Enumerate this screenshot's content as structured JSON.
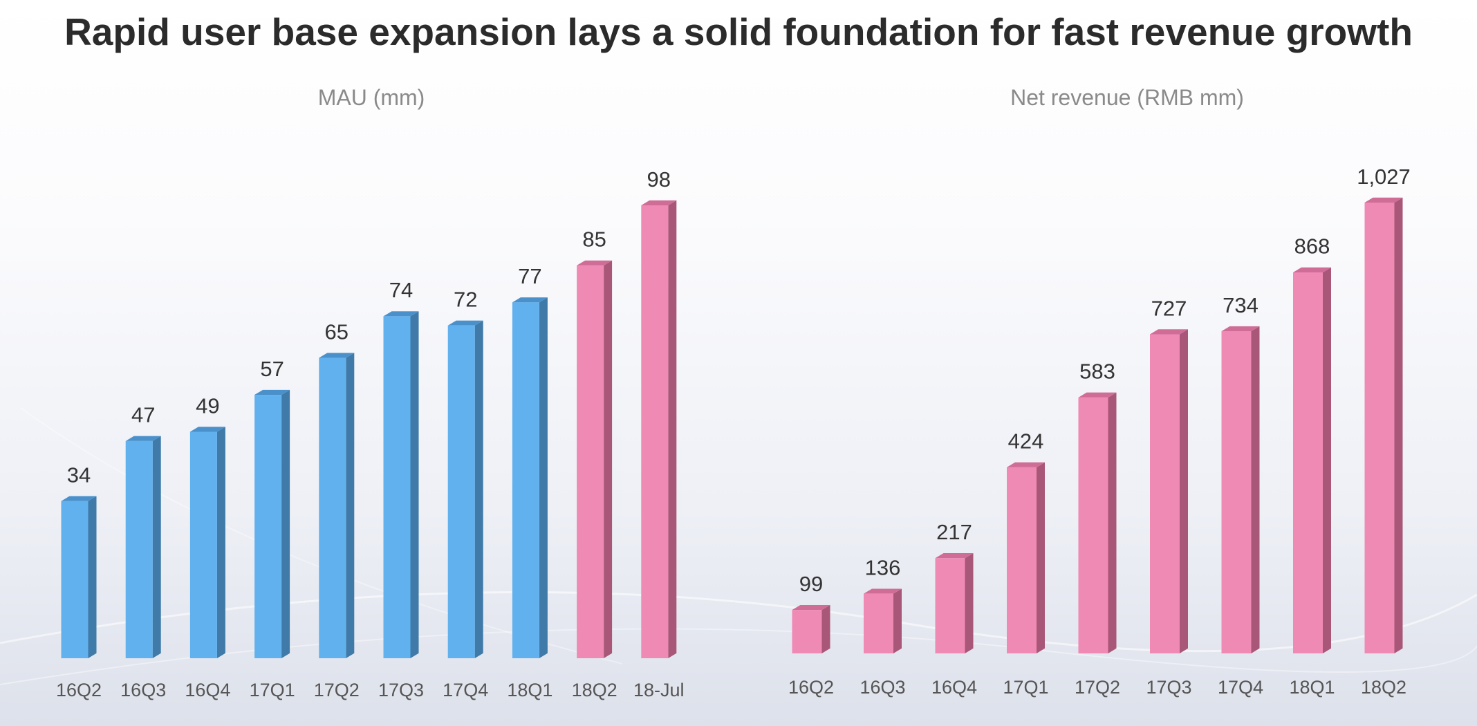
{
  "page": {
    "title": "Rapid user base expansion lays a solid foundation for fast revenue growth"
  },
  "colors": {
    "blue_front": "#62b1ef",
    "blue_side": "#3f7aa8",
    "blue_top": "#4a91cc",
    "pink_front": "#ef8ab5",
    "pink_side": "#a95778",
    "pink_top": "#cf6d97",
    "title_text": "#2b2b2b",
    "subtitle_text": "#8a8a8a",
    "label_text": "#333333",
    "tick_text": "#555555"
  },
  "chart_data": [
    {
      "id": "mau",
      "type": "bar",
      "title": "MAU (mm)",
      "xlabel": "",
      "ylabel": "",
      "categories": [
        "16Q2",
        "16Q3",
        "16Q4",
        "17Q1",
        "17Q2",
        "17Q3",
        "17Q4",
        "18Q1",
        "18Q2",
        "18-Jul"
      ],
      "values": [
        34,
        47,
        49,
        57,
        65,
        74,
        72,
        77,
        85,
        98
      ],
      "data_labels": [
        "34",
        "47",
        "49",
        "57",
        "65",
        "74",
        "72",
        "77",
        "85",
        "98"
      ],
      "bar_colors": [
        "blue",
        "blue",
        "blue",
        "blue",
        "blue",
        "blue",
        "blue",
        "blue",
        "pink",
        "pink"
      ],
      "ylim": [
        0,
        98
      ],
      "grid": false,
      "legend": "none",
      "style": "3d-columns"
    },
    {
      "id": "revenue",
      "type": "bar",
      "title": "Net revenue (RMB mm)",
      "xlabel": "",
      "ylabel": "",
      "categories": [
        "16Q2",
        "16Q3",
        "16Q4",
        "17Q1",
        "17Q2",
        "17Q3",
        "17Q4",
        "18Q1",
        "18Q2"
      ],
      "values": [
        99,
        136,
        217,
        424,
        583,
        727,
        734,
        868,
        1027
      ],
      "data_labels": [
        "99",
        "136",
        "217",
        "424",
        "583",
        "727",
        "734",
        "868",
        "1,027"
      ],
      "bar_colors": [
        "pink",
        "pink",
        "pink",
        "pink",
        "pink",
        "pink",
        "pink",
        "pink",
        "pink"
      ],
      "ylim": [
        0,
        1027
      ],
      "grid": false,
      "legend": "none",
      "style": "3d-columns"
    }
  ]
}
